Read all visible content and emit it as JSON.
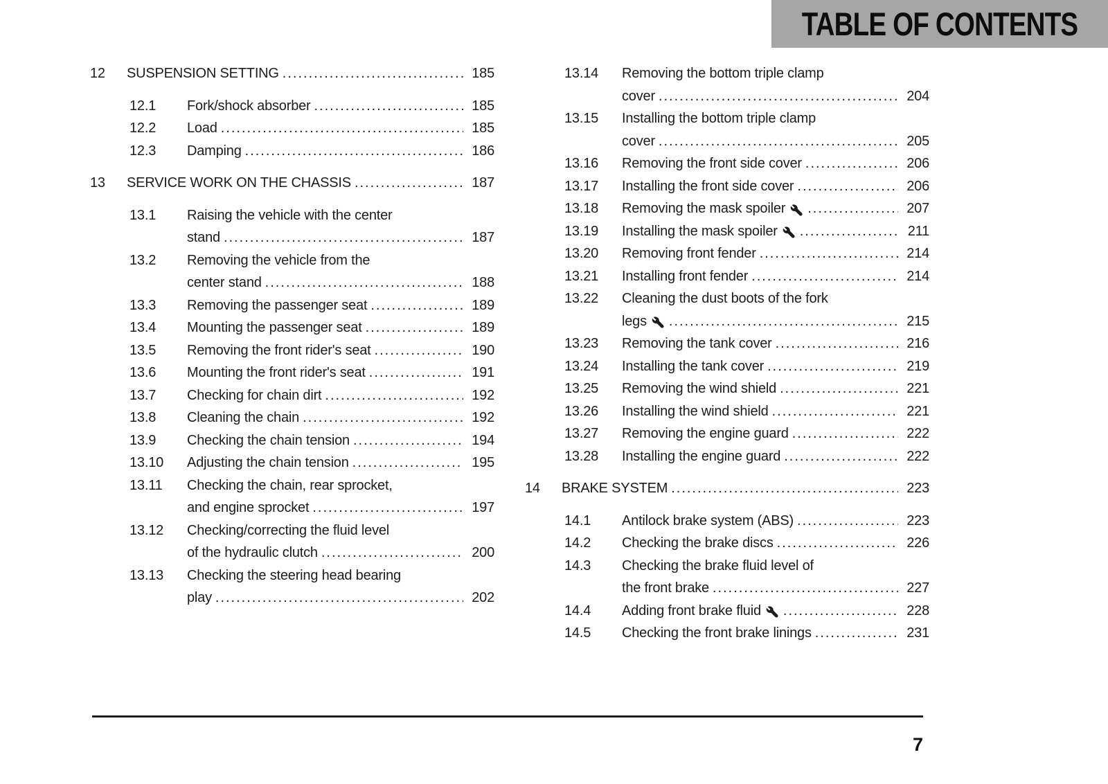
{
  "header": {
    "title": "TABLE OF CONTENTS",
    "banner_bg": "#a6a6a6",
    "text_color": "#0d0d0d"
  },
  "footer": {
    "page_number": "7"
  },
  "icons": {
    "wrench": "wrench-icon"
  },
  "columns": [
    {
      "sections": [
        {
          "num": "12",
          "title": "SUSPENSION SETTING",
          "page": "185",
          "entries": [
            {
              "num": "12.1",
              "lines": [
                "Fork/shock absorber"
              ],
              "page": "185"
            },
            {
              "num": "12.2",
              "lines": [
                "Load"
              ],
              "page": "185"
            },
            {
              "num": "12.3",
              "lines": [
                "Damping"
              ],
              "page": "186"
            }
          ]
        },
        {
          "num": "13",
          "title": "SERVICE WORK ON THE CHASSIS",
          "page": "187",
          "entries": [
            {
              "num": "13.1",
              "lines": [
                "Raising the vehicle with the center",
                "stand"
              ],
              "page": "187"
            },
            {
              "num": "13.2",
              "lines": [
                "Removing the vehicle from the",
                "center stand"
              ],
              "page": "188"
            },
            {
              "num": "13.3",
              "lines": [
                "Removing the passenger seat"
              ],
              "page": "189"
            },
            {
              "num": "13.4",
              "lines": [
                "Mounting the passenger seat"
              ],
              "page": "189"
            },
            {
              "num": "13.5",
              "lines": [
                "Removing the front rider's seat"
              ],
              "page": "190"
            },
            {
              "num": "13.6",
              "lines": [
                "Mounting the front rider's seat"
              ],
              "page": "191"
            },
            {
              "num": "13.7",
              "lines": [
                "Checking for chain dirt"
              ],
              "page": "192"
            },
            {
              "num": "13.8",
              "lines": [
                "Cleaning the chain"
              ],
              "page": "192"
            },
            {
              "num": "13.9",
              "lines": [
                "Checking the chain tension"
              ],
              "page": "194"
            },
            {
              "num": "13.10",
              "lines": [
                "Adjusting the chain tension"
              ],
              "page": "195"
            },
            {
              "num": "13.11",
              "lines": [
                "Checking the chain, rear sprocket,",
                "and engine sprocket"
              ],
              "page": "197"
            },
            {
              "num": "13.12",
              "lines": [
                "Checking/correcting the fluid level",
                "of the hydraulic clutch"
              ],
              "page": "200"
            },
            {
              "num": "13.13",
              "lines": [
                "Checking the steering head bearing",
                "play"
              ],
              "page": "202"
            }
          ]
        }
      ]
    },
    {
      "sections": [
        {
          "num": null,
          "title": null,
          "page": null,
          "entries": [
            {
              "num": "13.14",
              "lines": [
                "Removing the bottom triple clamp",
                "cover"
              ],
              "page": "204"
            },
            {
              "num": "13.15",
              "lines": [
                "Installing the bottom triple clamp",
                "cover"
              ],
              "page": "205"
            },
            {
              "num": "13.16",
              "lines": [
                "Removing the front side cover"
              ],
              "page": "206"
            },
            {
              "num": "13.17",
              "lines": [
                "Installing the front side cover"
              ],
              "page": "206"
            },
            {
              "num": "13.18",
              "lines": [
                "Removing the mask spoiler"
              ],
              "wrench": true,
              "page": "207"
            },
            {
              "num": "13.19",
              "lines": [
                "Installing the mask spoiler"
              ],
              "wrench": true,
              "page": "211"
            },
            {
              "num": "13.20",
              "lines": [
                "Removing front fender"
              ],
              "page": "214"
            },
            {
              "num": "13.21",
              "lines": [
                "Installing front fender"
              ],
              "page": "214"
            },
            {
              "num": "13.22",
              "lines": [
                "Cleaning the dust boots of the fork",
                "legs"
              ],
              "wrench": true,
              "page": "215"
            },
            {
              "num": "13.23",
              "lines": [
                "Removing the tank cover"
              ],
              "page": "216"
            },
            {
              "num": "13.24",
              "lines": [
                "Installing the tank cover"
              ],
              "page": "219"
            },
            {
              "num": "13.25",
              "lines": [
                "Removing the wind shield"
              ],
              "page": "221"
            },
            {
              "num": "13.26",
              "lines": [
                "Installing the wind shield"
              ],
              "page": "221"
            },
            {
              "num": "13.27",
              "lines": [
                "Removing the engine guard"
              ],
              "page": "222"
            },
            {
              "num": "13.28",
              "lines": [
                "Installing the engine guard"
              ],
              "page": "222"
            }
          ]
        },
        {
          "num": "14",
          "title": "BRAKE SYSTEM",
          "page": "223",
          "entries": [
            {
              "num": "14.1",
              "lines": [
                "Antilock brake system (ABS)"
              ],
              "page": "223"
            },
            {
              "num": "14.2",
              "lines": [
                "Checking the brake discs"
              ],
              "page": "226"
            },
            {
              "num": "14.3",
              "lines": [
                "Checking the brake fluid level of",
                "the front brake"
              ],
              "page": "227"
            },
            {
              "num": "14.4",
              "lines": [
                "Adding front brake fluid"
              ],
              "wrench": true,
              "page": "228"
            },
            {
              "num": "14.5",
              "lines": [
                "Checking the front brake linings"
              ],
              "page": "231"
            }
          ]
        }
      ]
    }
  ]
}
